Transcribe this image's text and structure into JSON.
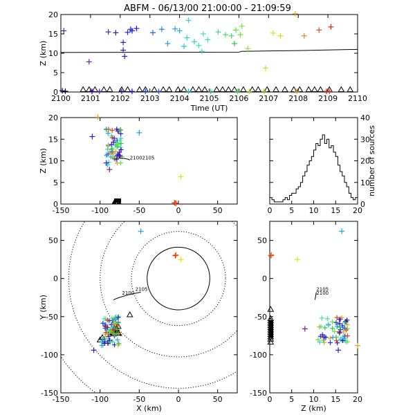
{
  "title": "ABFM - 06/13/00 21:00:00 - 21:09:59",
  "chart_data": [
    {
      "type": "scatter",
      "panel": "time-height",
      "xlabel": "Time (UT)",
      "ylabel": "Z (km)",
      "xlim": [
        2100,
        2110
      ],
      "ylim": [
        0,
        20
      ],
      "x_ticks": [
        "2100",
        "2101",
        "2102",
        "2103",
        "2104",
        "2105",
        "2106",
        "2107",
        "2108",
        "2109",
        "2110"
      ],
      "y_ticks": [
        "0",
        "5",
        "10",
        "15",
        "20"
      ],
      "sources": [
        {
          "t": 2100.1,
          "z": 15.8,
          "c": "#3030b0"
        },
        {
          "t": 2100.05,
          "z": 0.3,
          "c": "#000080"
        },
        {
          "t": 2100.15,
          "z": 0.2,
          "c": "#101040"
        },
        {
          "t": 2100.95,
          "z": 7.8,
          "c": "#7020a0"
        },
        {
          "t": 2101.05,
          "z": 0.1,
          "c": "#4000a0"
        },
        {
          "t": 2101.3,
          "z": 0.1,
          "c": "#6020c0"
        },
        {
          "t": 2101.6,
          "z": 15.5,
          "c": "#4030c0"
        },
        {
          "t": 2101.85,
          "z": 15.3,
          "c": "#2020d0"
        },
        {
          "t": 2102.05,
          "z": 0.1,
          "c": "#2010a0"
        },
        {
          "t": 2102.1,
          "z": 12.8,
          "c": "#2020c0"
        },
        {
          "t": 2102.1,
          "z": 10.8,
          "c": "#2020c0"
        },
        {
          "t": 2102.15,
          "z": 9.2,
          "c": "#2020c0"
        },
        {
          "t": 2102.25,
          "z": 15.4,
          "c": "#2030e0"
        },
        {
          "t": 2102.4,
          "z": 15.8,
          "c": "#1010d0"
        },
        {
          "t": 2102.35,
          "z": 16.2,
          "c": "#2020e0"
        },
        {
          "t": 2102.55,
          "z": 16.4,
          "c": "#2020e0"
        },
        {
          "t": 2102.4,
          "z": 0.1,
          "c": "#1010d0"
        },
        {
          "t": 2102.85,
          "z": 0.1,
          "c": "#2040e0"
        },
        {
          "t": 2103.1,
          "z": 15.3,
          "c": "#2060e0"
        },
        {
          "t": 2103.3,
          "z": 0.1,
          "c": "#2060e0"
        },
        {
          "t": 2103.4,
          "z": 16.2,
          "c": "#2080e0"
        },
        {
          "t": 2103.6,
          "z": 12.5,
          "c": "#20a0e0"
        },
        {
          "t": 2103.85,
          "z": 16.3,
          "c": "#20a0e0"
        },
        {
          "t": 2104.0,
          "z": 15.8,
          "c": "#20b0e0"
        },
        {
          "t": 2104.15,
          "z": 11.8,
          "c": "#20c0e0"
        },
        {
          "t": 2104.25,
          "z": 14.0,
          "c": "#30d0d0"
        },
        {
          "t": 2104.3,
          "z": 18.5,
          "c": "#30d0e0"
        },
        {
          "t": 2104.3,
          "z": 0.1,
          "c": "#20c0d0"
        },
        {
          "t": 2104.5,
          "z": 13.0,
          "c": "#30d0c0"
        },
        {
          "t": 2104.65,
          "z": 12.0,
          "c": "#40e0c0"
        },
        {
          "t": 2104.75,
          "z": 10.5,
          "c": "#40e0c0"
        },
        {
          "t": 2104.95,
          "z": 13.5,
          "c": "#40e0b0"
        },
        {
          "t": 2104.8,
          "z": 15.0,
          "c": "#40e0b0"
        },
        {
          "t": 2105.05,
          "z": 0.1,
          "c": "#30c090"
        },
        {
          "t": 2105.3,
          "z": 15.5,
          "c": "#40e080"
        },
        {
          "t": 2105.55,
          "z": 14.8,
          "c": "#40e060"
        },
        {
          "t": 2105.75,
          "z": 14.5,
          "c": "#40e060"
        },
        {
          "t": 2105.85,
          "z": 12.5,
          "c": "#30c050"
        },
        {
          "t": 2105.9,
          "z": 16.0,
          "c": "#60e040"
        },
        {
          "t": 2106.05,
          "z": 14.8,
          "c": "#70e040"
        },
        {
          "t": 2105.95,
          "z": 0.1,
          "c": "#40e050"
        },
        {
          "t": 2106.1,
          "z": 17.0,
          "c": "#80e040"
        },
        {
          "t": 2106.3,
          "z": 11.2,
          "c": "#90e030"
        },
        {
          "t": 2106.35,
          "z": 0.1,
          "c": "#a0e030"
        },
        {
          "t": 2106.9,
          "z": 6.2,
          "c": "#c0e020"
        },
        {
          "t": 2106.85,
          "z": 0.1,
          "c": "#b0d020"
        },
        {
          "t": 2107.15,
          "z": 15.2,
          "c": "#e0e020"
        },
        {
          "t": 2107.4,
          "z": 14.5,
          "c": "#e0d020"
        },
        {
          "t": 2107.9,
          "z": 20.2,
          "c": "#e0b020"
        },
        {
          "t": 2107.95,
          "z": 0.1,
          "c": "#e0a020"
        },
        {
          "t": 2108.2,
          "z": 14.5,
          "c": "#e08020"
        },
        {
          "t": 2108.7,
          "z": 16.0,
          "c": "#e05020"
        },
        {
          "t": 2109.1,
          "z": 16.8,
          "c": "#e02010"
        },
        {
          "t": 2108.95,
          "z": 0.1,
          "c": "#e02010"
        },
        {
          "t": 2109.05,
          "z": 0.1,
          "c": "#e03010"
        }
      ],
      "stations_t": [
        2100.75,
        2100.95,
        2101.15,
        2101.45,
        2101.65,
        2102.05,
        2102.25,
        2102.65,
        2102.85,
        2103.15,
        2103.45,
        2103.65,
        2103.95,
        2104.15,
        2104.45,
        2104.65,
        2104.85,
        2105.25,
        2105.45,
        2105.65,
        2105.85,
        2106.15,
        2106.45,
        2106.65,
        2106.95,
        2107.25,
        2107.55,
        2107.85,
        2108.05,
        2108.35,
        2108.55,
        2108.75,
        2109.05,
        2109.45,
        2109.75
      ],
      "trend_line": [
        [
          2100,
          10.2
        ],
        [
          2106.0,
          10.3
        ],
        [
          2106.1,
          10.5
        ],
        [
          2108.0,
          10.7
        ],
        [
          2110,
          11.0
        ]
      ]
    },
    {
      "type": "scatter",
      "panel": "x-height",
      "xlabel": "",
      "ylabel": "Z (km)",
      "xlim": [
        -150,
        75
      ],
      "ylim": [
        0,
        20
      ],
      "x_ticks": [
        "-150",
        "-100",
        "-50",
        "0",
        "50"
      ],
      "y_ticks": [
        "0",
        "5",
        "10",
        "15",
        "20"
      ]
    },
    {
      "type": "bar",
      "panel": "histogram",
      "xlabel": "",
      "ylabel": "number of sources",
      "xlim": [
        0,
        20
      ],
      "ylim": [
        0,
        40
      ],
      "x_ticks": [
        "0",
        "5",
        "10",
        "15",
        "20"
      ],
      "y_ticks": [
        "0",
        "10",
        "20",
        "30",
        "40"
      ],
      "bin_width": 0.5,
      "values": [
        3,
        2,
        1,
        1,
        1,
        1,
        2,
        3,
        2,
        4,
        5,
        5,
        7,
        8,
        10,
        13,
        15,
        18,
        20,
        22,
        25,
        28,
        27,
        30,
        32,
        28,
        30,
        26,
        27,
        24,
        22,
        18,
        15,
        13,
        10,
        8,
        5,
        3,
        2,
        3
      ]
    },
    {
      "type": "scatter",
      "panel": "plan-view",
      "xlabel": "X (km)",
      "ylabel": "Y (km)",
      "xlim": [
        -150,
        75
      ],
      "ylim": [
        -150,
        75
      ],
      "x_ticks": [
        "-150",
        "-100",
        "-50",
        "0",
        "50"
      ],
      "y_ticks": [
        "-150",
        "-100",
        "-50",
        "0",
        "50"
      ],
      "range_rings_km": [
        40,
        60,
        100,
        140,
        180
      ],
      "annotations": [
        "2100",
        "2105"
      ]
    },
    {
      "type": "scatter",
      "panel": "height-y",
      "xlabel": "Z (km)",
      "ylabel": "",
      "xlim": [
        0,
        20
      ],
      "ylim": [
        -150,
        75
      ],
      "x_ticks": [
        "0",
        "5",
        "10",
        "15",
        "20"
      ],
      "y_ticks": [
        "-150",
        "-100",
        "-50",
        "0",
        "50"
      ],
      "annotations": [
        "2100",
        "2105"
      ]
    }
  ]
}
